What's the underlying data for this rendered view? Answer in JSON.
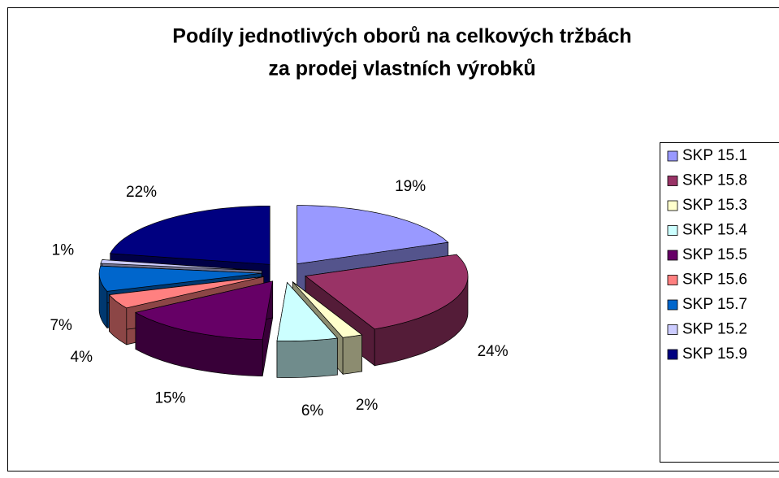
{
  "chart_data": {
    "type": "pie",
    "title": [
      "Podíly jednotlivých oborů na celkových tržbách",
      "za prodej vlastních výrobků"
    ],
    "categories": [
      "SKP 15.1",
      "SKP 15.8",
      "SKP 15.3",
      "SKP 15.4",
      "SKP 15.5",
      "SKP 15.6",
      "SKP 15.7",
      "SKP 15.2",
      "SKP 15.9"
    ],
    "values": [
      19,
      24,
      2,
      6,
      15,
      4,
      7,
      1,
      22
    ],
    "value_labels": [
      "19%",
      "24%",
      "2%",
      "6%",
      "15%",
      "4%",
      "7%",
      "1%",
      "22%"
    ],
    "colors": [
      "#9999ff",
      "#993366",
      "#ffffcc",
      "#ccffff",
      "#660066",
      "#ff8080",
      "#0066cc",
      "#ccccff",
      "#000080"
    ],
    "legend": "right"
  }
}
